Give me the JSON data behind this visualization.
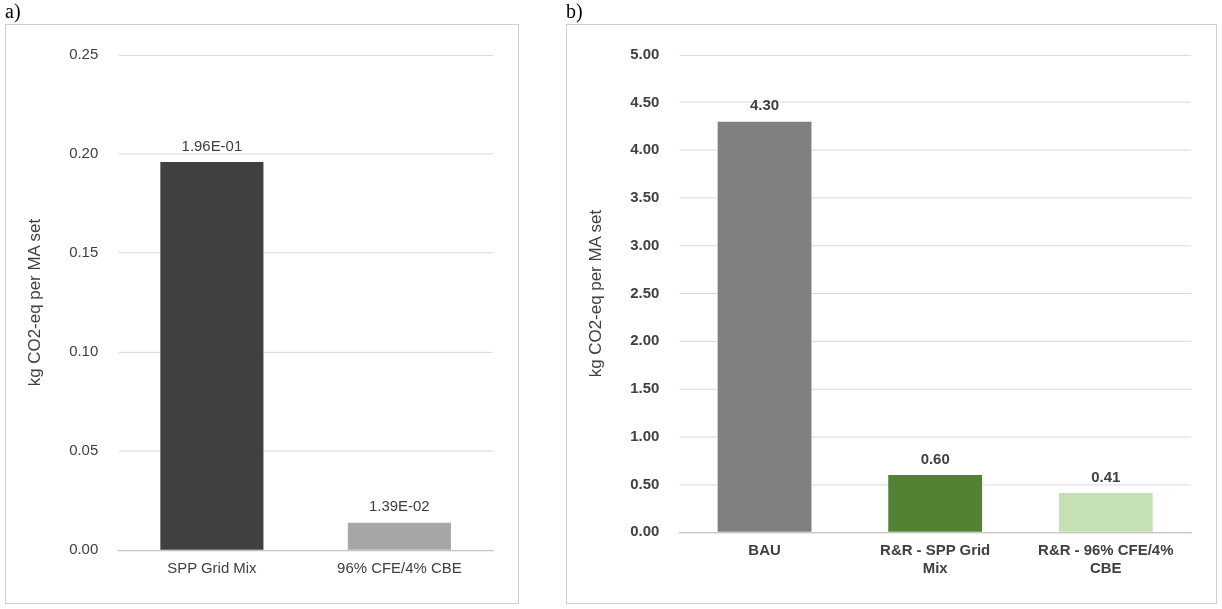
{
  "chart_data": [
    {
      "type": "bar",
      "annotations": [
        "a)"
      ],
      "ylabel": "kg CO2-eq per MA set",
      "categories": [
        "SPP Grid Mix",
        "96% CFE/4% CBE"
      ],
      "values": [
        0.196,
        0.0139
      ],
      "colors": [
        "#404040",
        "#a6a6a6"
      ],
      "value_labels": [
        "1.96E-01",
        "1.39E-02"
      ],
      "ylim": [
        0,
        0.25
      ],
      "yticks": [
        {
          "value": 0,
          "label": "0.00"
        },
        {
          "value": 0.05,
          "label": "0.05"
        },
        {
          "value": 0.1,
          "label": "0.10"
        },
        {
          "value": 0.15,
          "label": "0.15"
        },
        {
          "value": 0.2,
          "label": "0.20"
        },
        {
          "value": 0.25,
          "label": "0.25"
        }
      ],
      "grid": "y",
      "legend": false
    },
    {
      "type": "bar",
      "annotations": [
        "b)"
      ],
      "ylabel": "kg CO2-eq per MA set",
      "categories": [
        "BAU",
        "R&R - SPP Grid Mix",
        "R&R - 96% CFE/4% CBE"
      ],
      "values": [
        4.3,
        0.6,
        0.41
      ],
      "colors": [
        "#808080",
        "#548235",
        "#c5e0b4"
      ],
      "value_labels": [
        "4.30",
        "0.60",
        "0.41"
      ],
      "ylim": [
        0,
        5
      ],
      "yticks": [
        {
          "value": 0,
          "label": "0.00"
        },
        {
          "value": 0.5,
          "label": "0.50"
        },
        {
          "value": 1,
          "label": "1.00"
        },
        {
          "value": 1.5,
          "label": "1.50"
        },
        {
          "value": 2,
          "label": "2.00"
        },
        {
          "value": 2.5,
          "label": "2.50"
        },
        {
          "value": 3,
          "label": "3.00"
        },
        {
          "value": 3.5,
          "label": "3.50"
        },
        {
          "value": 4,
          "label": "4.00"
        },
        {
          "value": 4.5,
          "label": "4.50"
        },
        {
          "value": 5,
          "label": "5.00"
        }
      ],
      "grid": "y",
      "legend": false
    }
  ]
}
